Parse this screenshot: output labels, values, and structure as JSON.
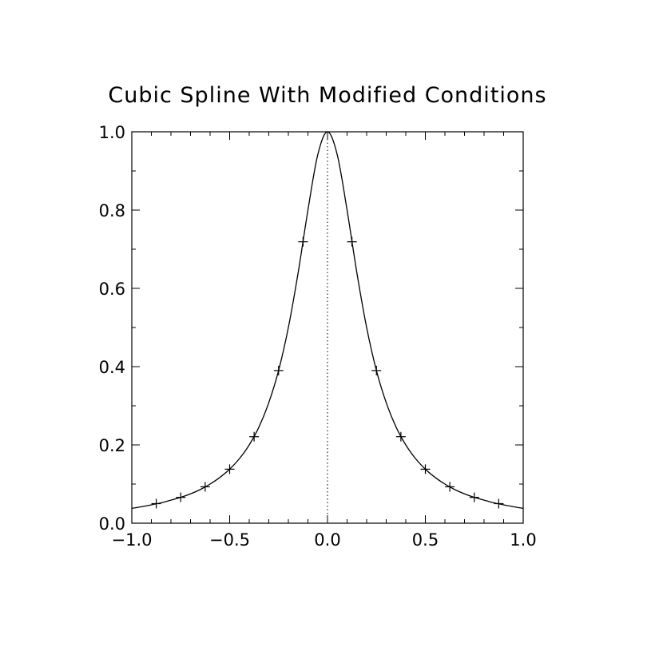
{
  "chart_data": {
    "type": "line",
    "title": "Cubic Spline With Modified Conditions",
    "xlabel": "",
    "ylabel": "",
    "xlim": [
      -1.0,
      1.0
    ],
    "ylim": [
      0.0,
      1.0
    ],
    "x_ticks": [
      -1.0,
      -0.5,
      0.0,
      0.5,
      1.0
    ],
    "x_tick_labels": [
      "-1.0",
      "-0.5",
      "0.0",
      "0.5",
      "1.0"
    ],
    "y_ticks": [
      0.0,
      0.2,
      0.4,
      0.6,
      0.8,
      1.0
    ],
    "y_tick_labels": [
      "0.0",
      "0.2",
      "0.4",
      "0.6",
      "0.8",
      "1.0"
    ],
    "grid": false,
    "legend": "none",
    "series": [
      {
        "style": "solid line",
        "x": [
          -1.0,
          -0.95,
          -0.9,
          -0.85,
          -0.8,
          -0.75,
          -0.7,
          -0.65,
          -0.6,
          -0.55,
          -0.5,
          -0.45,
          -0.4,
          -0.35,
          -0.3,
          -0.25,
          -0.2,
          -0.15,
          -0.1,
          -0.05,
          0.0,
          0.05,
          0.1,
          0.15,
          0.2,
          0.25,
          0.3,
          0.35,
          0.4,
          0.45,
          0.5,
          0.55,
          0.6,
          0.65,
          0.7,
          0.75,
          0.8,
          0.85,
          0.9,
          0.95,
          1.0
        ],
        "y": [
          0.038,
          0.042,
          0.047,
          0.052,
          0.059,
          0.066,
          0.075,
          0.086,
          0.1,
          0.117,
          0.138,
          0.165,
          0.2,
          0.246,
          0.308,
          0.39,
          0.5,
          0.64,
          0.8,
          0.941,
          1.0,
          0.941,
          0.8,
          0.64,
          0.5,
          0.39,
          0.308,
          0.246,
          0.2,
          0.165,
          0.138,
          0.117,
          0.1,
          0.086,
          0.075,
          0.066,
          0.059,
          0.052,
          0.047,
          0.042,
          0.038
        ]
      },
      {
        "style": "plus markers",
        "x": [
          -0.875,
          -0.75,
          -0.625,
          -0.5,
          -0.375,
          -0.25,
          -0.125,
          0.125,
          0.25,
          0.375,
          0.5,
          0.625,
          0.75,
          0.875
        ],
        "y": [
          0.05,
          0.066,
          0.093,
          0.138,
          0.221,
          0.39,
          0.719,
          0.719,
          0.39,
          0.221,
          0.138,
          0.093,
          0.066,
          0.05
        ]
      }
    ],
    "reference_lines": [
      {
        "orientation": "vertical",
        "x": 0.0,
        "style": "dotted"
      }
    ]
  }
}
